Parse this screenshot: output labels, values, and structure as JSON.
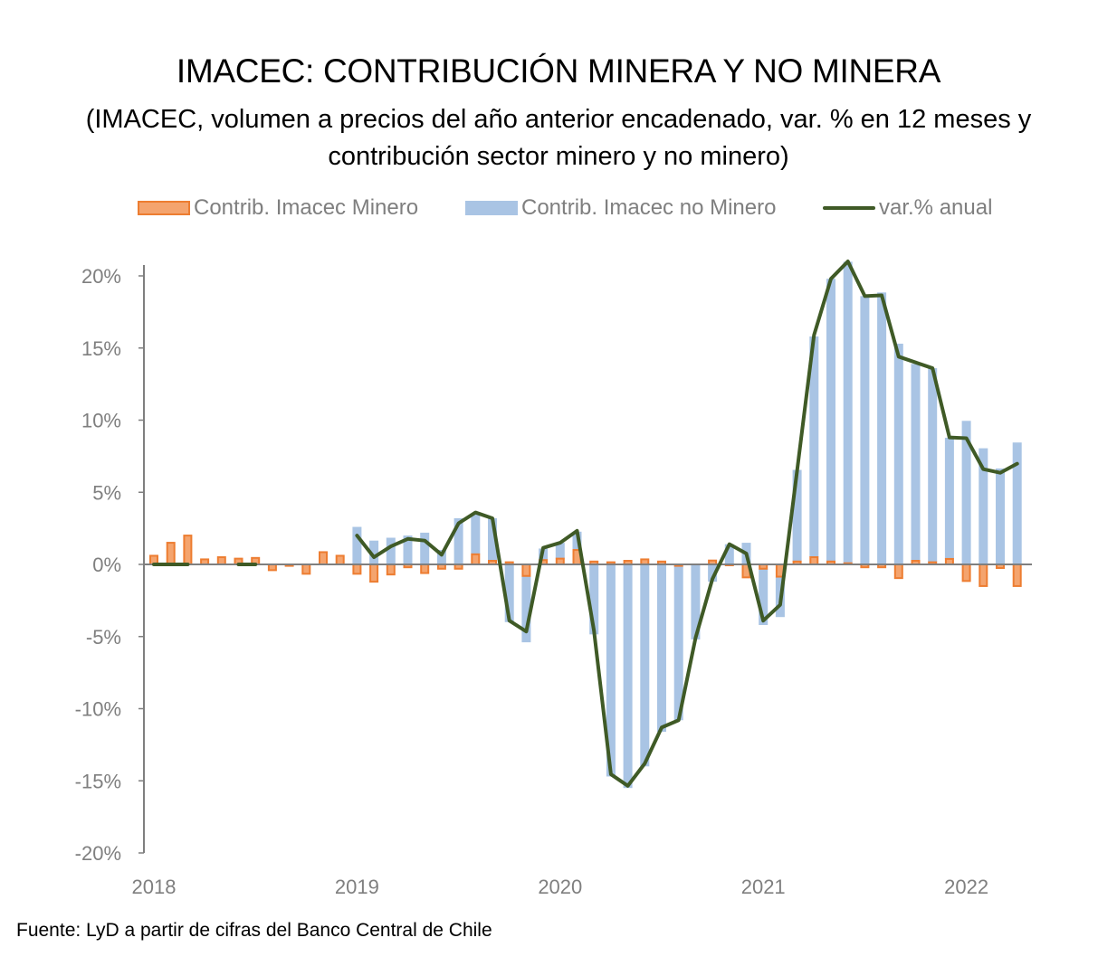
{
  "header": {
    "title": "IMACEC: CONTRIBUCIÓN MINERA Y NO MINERA",
    "subtitle": "(IMACEC, volumen a precios del año anterior encadenado, var. % en 12 meses y contribución sector minero y no minero)"
  },
  "legend": {
    "minero": "Contrib. Imacec Minero",
    "no_minero": "Contrib. Imacec no Minero",
    "var": "var.% anual"
  },
  "footer": "Fuente: LyD a partir de cifras del Banco Central de Chile",
  "colors": {
    "minero_fill": "#f4a46e",
    "minero_border": "#ed7d31",
    "no_minero": "#a9c4e4",
    "line": "#3f5a26",
    "axis": "#7f7f7f"
  },
  "chart_data": {
    "type": "bar",
    "title": "IMACEC: CONTRIBUCIÓN MINERA Y NO MINERA",
    "subtitle": "(IMACEC, volumen a precios del año anterior encadenado, var. % en 12 meses y contribución sector minero y no minero)",
    "xlabel": "",
    "ylabel": "",
    "ylim": [
      -20,
      20
    ],
    "yticks": [
      20,
      15,
      10,
      5,
      0,
      -5,
      -10,
      -15,
      -20
    ],
    "ytick_labels": [
      "20%",
      "15%",
      "10%",
      "5%",
      "0%",
      "-5%",
      "-10%",
      "-15%",
      "-20%"
    ],
    "xtick_labels": [
      "2018",
      "2019",
      "2020",
      "2021",
      "2022"
    ],
    "legend_position": "top",
    "grid": false,
    "categories": [
      "2018-01",
      "2018-02",
      "2018-03",
      "2018-04",
      "2018-05",
      "2018-06",
      "2018-07",
      "2018-08",
      "2018-09",
      "2018-10",
      "2018-11",
      "2018-12",
      "2019-01",
      "2019-02",
      "2019-03",
      "2019-04",
      "2019-05",
      "2019-06",
      "2019-07",
      "2019-08",
      "2019-09",
      "2019-10",
      "2019-11",
      "2019-12",
      "2020-01",
      "2020-02",
      "2020-03",
      "2020-04",
      "2020-05",
      "2020-06",
      "2020-07",
      "2020-08",
      "2020-09",
      "2020-10",
      "2020-11",
      "2020-12",
      "2021-01",
      "2021-02",
      "2021-03",
      "2021-04",
      "2021-05",
      "2021-06",
      "2021-07",
      "2021-08",
      "2021-09",
      "2021-10",
      "2021-11",
      "2021-12",
      "2022-01",
      "2022-02",
      "2022-03",
      "2022-04"
    ],
    "series": [
      {
        "name": "Contrib. Imacec Minero",
        "type": "bar",
        "values": [
          0.6,
          1.5,
          2.0,
          0.35,
          0.5,
          0.4,
          0.45,
          -0.4,
          -0.1,
          -0.65,
          0.85,
          0.6,
          -0.65,
          -1.2,
          -0.7,
          -0.2,
          -0.6,
          -0.3,
          -0.3,
          0.7,
          0.25,
          0.15,
          -0.8,
          0.3,
          0.4,
          1.0,
          0.2,
          0.15,
          0.25,
          0.35,
          0.2,
          -0.1,
          0.0,
          0.27,
          -0.05,
          -0.9,
          -0.3,
          -0.85,
          0.2,
          0.5,
          0.2,
          0.08,
          -0.2,
          -0.2,
          -0.95,
          0.25,
          0.15,
          0.38,
          -1.15,
          -1.5,
          -0.25,
          -1.5
        ]
      },
      {
        "name": "Contrib. Imacec no Minero",
        "type": "bar",
        "values": [
          0,
          0,
          0,
          0,
          0,
          0,
          0,
          0,
          0,
          0,
          0,
          0,
          2.6,
          1.65,
          1.85,
          2.0,
          2.2,
          1.0,
          3.2,
          2.8,
          2.95,
          -4.0,
          -4.6,
          0.8,
          1.1,
          1.27,
          -4.85,
          -14.7,
          -15.5,
          -14.0,
          -11.6,
          -10.7,
          -5.2,
          -1.2,
          1.4,
          1.5,
          -3.9,
          -2.8,
          6.35,
          15.3,
          19.6,
          20.9,
          18.6,
          18.85,
          15.3,
          13.65,
          13.45,
          8.4,
          9.95,
          8.05,
          6.65,
          8.45
        ]
      },
      {
        "name": "var.% anual",
        "type": "line",
        "values": [
          0,
          0,
          0,
          null,
          null,
          0,
          0,
          null,
          null,
          null,
          null,
          null,
          2.0,
          0.5,
          1.25,
          1.77,
          1.65,
          0.67,
          2.85,
          3.6,
          3.2,
          -3.9,
          -4.65,
          1.15,
          1.5,
          2.33,
          -4.6,
          -14.55,
          -15.35,
          -13.8,
          -11.3,
          -10.8,
          -5.1,
          -1.0,
          1.4,
          0.75,
          -3.9,
          -2.8,
          6.5,
          15.9,
          19.8,
          21.0,
          18.6,
          18.65,
          14.4,
          14.0,
          13.6,
          8.8,
          8.75,
          6.6,
          6.35,
          6.98
        ]
      }
    ]
  }
}
